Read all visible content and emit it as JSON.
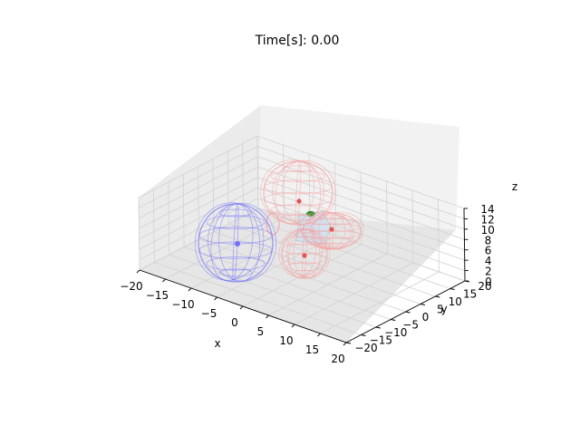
{
  "chart_data": {
    "type": "scatter",
    "title": "Time[s]: 0.00",
    "xlabel": "x",
    "ylabel": "y",
    "zlabel": "z",
    "xlim": [
      -20,
      20
    ],
    "ylim": [
      -20,
      20
    ],
    "zlim": [
      0,
      14
    ],
    "x_ticks": [
      "−20",
      "−15",
      "−10",
      "−5",
      "0",
      "5",
      "10",
      "15",
      "20"
    ],
    "y_ticks": [
      "−20",
      "−15",
      "−10",
      "−5",
      "0",
      "5",
      "10",
      "15",
      "20"
    ],
    "z_ticks": [
      "0",
      "2",
      "4",
      "6",
      "8",
      "10",
      "12",
      "14"
    ],
    "grid": true,
    "colors": {
      "blue_sphere": "#6f6ff7",
      "red_sphere": "#f4a0a0",
      "red_center": "#e05555",
      "green_marker": "#1f8f1f",
      "cube": "#c6dff0"
    },
    "objects": [
      {
        "kind": "sphere",
        "color": "blue",
        "center": [
          -12,
          -2,
          4
        ],
        "radius": 6
      },
      {
        "kind": "sphere",
        "color": "red",
        "center": [
          2,
          8,
          9
        ],
        "radius": 5
      },
      {
        "kind": "ellipsoid",
        "color": "red",
        "center": [
          10,
          2,
          4
        ],
        "radius": 4
      },
      {
        "kind": "sphere",
        "color": "red",
        "center": [
          4,
          -6,
          3
        ],
        "radius": 4
      },
      {
        "kind": "cube",
        "color": "lightblue",
        "center": [
          -2,
          10,
          6
        ]
      },
      {
        "kind": "marker",
        "color": "green",
        "center": [
          -6,
          14,
          6
        ]
      }
    ]
  }
}
